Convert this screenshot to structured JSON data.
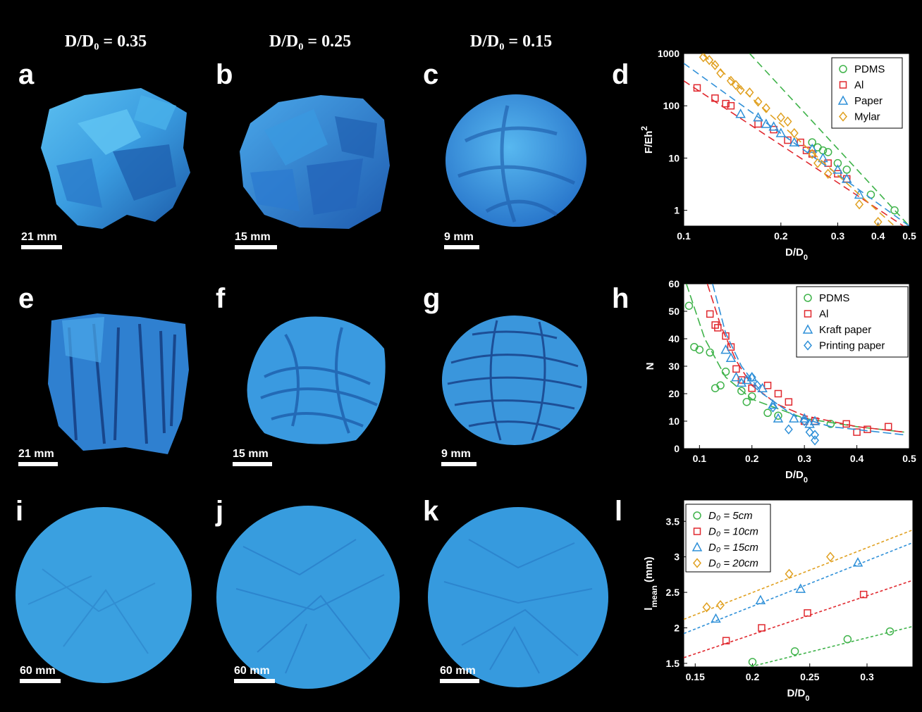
{
  "column_headers": [
    "D/D₀ = 0.35",
    "D/D₀ = 0.25",
    "D/D₀ = 0.15"
  ],
  "panels": {
    "a": {
      "letter": "a",
      "scale": "21 mm"
    },
    "b": {
      "letter": "b",
      "scale": "15 mm"
    },
    "c": {
      "letter": "c",
      "scale": "9 mm"
    },
    "d": {
      "letter": "d"
    },
    "e": {
      "letter": "e",
      "scale": "21 mm"
    },
    "f": {
      "letter": "f",
      "scale": "15 mm"
    },
    "g": {
      "letter": "g",
      "scale": "9 mm"
    },
    "h": {
      "letter": "h"
    },
    "i": {
      "letter": "i",
      "scale": "60 mm"
    },
    "j": {
      "letter": "j",
      "scale": "60 mm"
    },
    "k": {
      "letter": "k",
      "scale": "60 mm"
    },
    "l": {
      "letter": "l"
    }
  },
  "colors": {
    "green": "#3fb34a",
    "red": "#e0282e",
    "blue": "#2f90d8",
    "orange": "#e0a020",
    "specimen": "#3aa0e0"
  },
  "chart_data": [
    {
      "id": "d",
      "type": "scatter",
      "xlabel": "D/D0",
      "ylabel": "F/Eh2",
      "xscale": "log",
      "yscale": "log",
      "xlim": [
        0.1,
        0.5
      ],
      "ylim": [
        0.5,
        1000
      ],
      "xticks": [
        0.1,
        0.2,
        0.3,
        0.4,
        0.5
      ],
      "xtick_labels": [
        "0.1",
        "0.2",
        "0.3",
        "0.4",
        "0.5"
      ],
      "yticks": [
        1,
        10,
        100,
        1000
      ],
      "ytick_labels": [
        "1",
        "10",
        "100",
        "1000"
      ],
      "legend_position": "top-right",
      "series": [
        {
          "name": "PDMS",
          "marker": "circle",
          "color": "#3fb34a",
          "x": [
            0.25,
            0.26,
            0.27,
            0.28,
            0.3,
            0.32,
            0.38,
            0.45
          ],
          "y": [
            20,
            16,
            14,
            13,
            8,
            6,
            2,
            1
          ],
          "fit": [
            [
              0.16,
              1000
            ],
            [
              0.5,
              0.5
            ]
          ]
        },
        {
          "name": "Al",
          "marker": "square",
          "color": "#e0282e",
          "x": [
            0.11,
            0.125,
            0.135,
            0.14,
            0.17,
            0.19,
            0.21,
            0.23,
            0.24,
            0.25,
            0.28,
            0.3,
            0.32
          ],
          "y": [
            220,
            140,
            110,
            100,
            45,
            35,
            22,
            20,
            14,
            12,
            8,
            5,
            4
          ],
          "fit": [
            [
              0.1,
              300
            ],
            [
              0.48,
              0.5
            ]
          ]
        },
        {
          "name": "Paper",
          "marker": "triangle",
          "color": "#2f90d8",
          "x": [
            0.15,
            0.17,
            0.18,
            0.19,
            0.2,
            0.22,
            0.25,
            0.27,
            0.3,
            0.32,
            0.35
          ],
          "y": [
            70,
            60,
            45,
            40,
            30,
            20,
            15,
            10,
            6,
            4,
            2
          ],
          "fit": [
            [
              0.1,
              650
            ],
            [
              0.5,
              0.5
            ]
          ]
        },
        {
          "name": "Mylar",
          "marker": "diamond",
          "color": "#e0a020",
          "x": [
            0.115,
            0.12,
            0.125,
            0.13,
            0.14,
            0.145,
            0.15,
            0.16,
            0.17,
            0.18,
            0.2,
            0.21,
            0.22,
            0.25,
            0.26,
            0.28,
            0.35,
            0.4
          ],
          "y": [
            850,
            750,
            600,
            420,
            300,
            250,
            200,
            180,
            120,
            90,
            60,
            50,
            30,
            12,
            8,
            5,
            1.3,
            0.6
          ],
          "fit": [
            [
              0.115,
              950
            ],
            [
              0.45,
              0.5
            ]
          ]
        }
      ]
    },
    {
      "id": "h",
      "type": "scatter",
      "xlabel": "D/D0",
      "ylabel": "N",
      "xlim": [
        0.07,
        0.5
      ],
      "ylim": [
        0,
        60
      ],
      "xticks": [
        0.1,
        0.2,
        0.3,
        0.4,
        0.5
      ],
      "xtick_labels": [
        "0.1",
        "0.2",
        "0.3",
        "0.4",
        "0.5"
      ],
      "yticks": [
        0,
        10,
        20,
        30,
        40,
        50,
        60
      ],
      "ytick_labels": [
        "0",
        "10",
        "20",
        "30",
        "40",
        "50",
        "60"
      ],
      "legend_position": "top-right",
      "series": [
        {
          "name": "PDMS",
          "marker": "circle",
          "color": "#3fb34a",
          "x": [
            0.08,
            0.09,
            0.1,
            0.12,
            0.13,
            0.14,
            0.15,
            0.18,
            0.19,
            0.2,
            0.23,
            0.25,
            0.35
          ],
          "y": [
            52,
            37,
            36,
            35,
            22,
            23,
            28,
            21,
            17,
            19,
            13,
            12,
            9
          ],
          "fit": [
            [
              0.075,
              60
            ],
            [
              0.11,
              40
            ],
            [
              0.15,
              26
            ],
            [
              0.2,
              18
            ],
            [
              0.3,
              11
            ],
            [
              0.4,
              8
            ],
            [
              0.49,
              6
            ]
          ]
        },
        {
          "name": "Al",
          "marker": "square",
          "color": "#e0282e",
          "x": [
            0.12,
            0.13,
            0.135,
            0.15,
            0.16,
            0.17,
            0.18,
            0.2,
            0.23,
            0.25,
            0.27,
            0.3,
            0.32,
            0.38,
            0.4,
            0.42,
            0.46
          ],
          "y": [
            49,
            45,
            44,
            41,
            37,
            29,
            25,
            22,
            23,
            20,
            17,
            10,
            10,
            9,
            6,
            7,
            8
          ],
          "fit": [
            [
              0.115,
              60
            ],
            [
              0.14,
              45
            ],
            [
              0.17,
              32
            ],
            [
              0.2,
              23
            ],
            [
              0.25,
              16
            ],
            [
              0.3,
              12
            ],
            [
              0.4,
              8
            ],
            [
              0.49,
              6
            ]
          ]
        },
        {
          "name": "Kraft paper",
          "marker": "triangle",
          "color": "#2f90d8",
          "x": [
            0.15,
            0.16,
            0.17,
            0.18,
            0.19,
            0.2,
            0.22,
            0.24,
            0.25,
            0.28,
            0.3,
            0.31,
            0.32
          ],
          "y": [
            36,
            33,
            26,
            24,
            25,
            26,
            22,
            16,
            11,
            11,
            11,
            9,
            10
          ],
          "fit": [
            [
              0.125,
              60
            ],
            [
              0.15,
              42
            ],
            [
              0.18,
              30
            ],
            [
              0.22,
              20
            ],
            [
              0.28,
              12
            ],
            [
              0.35,
              8
            ],
            [
              0.49,
              5
            ]
          ]
        },
        {
          "name": "Printing paper",
          "marker": "diamond",
          "color": "#2f90d8",
          "x": [
            0.2,
            0.21,
            0.24,
            0.27,
            0.3,
            0.31,
            0.32,
            0.32
          ],
          "y": [
            26,
            23,
            15,
            7,
            10,
            6,
            5,
            3
          ],
          "fit": []
        }
      ]
    },
    {
      "id": "l",
      "type": "scatter",
      "xlabel": "D/D0",
      "ylabel": "l_mean (mm)",
      "xlim": [
        0.14,
        0.34
      ],
      "ylim": [
        1.45,
        3.8
      ],
      "xticks": [
        0.15,
        0.2,
        0.25,
        0.3
      ],
      "xtick_labels": [
        "0.15",
        "0.2",
        "0.25",
        "0.3"
      ],
      "yticks": [
        1.5,
        2,
        2.5,
        3,
        3.5
      ],
      "ytick_labels": [
        "1.5",
        "2",
        "2.5",
        "3",
        "3.5"
      ],
      "legend_position": "top-left",
      "series": [
        {
          "name": "D₀ = 5cm",
          "marker": "circle",
          "color": "#3fb34a",
          "x": [
            0.2,
            0.237,
            0.283,
            0.32
          ],
          "y": [
            1.52,
            1.67,
            1.84,
            1.95
          ],
          "fit": [
            [
              0.14,
              1.22
            ],
            [
              0.34,
              2.02
            ]
          ]
        },
        {
          "name": "D₀ = 10cm",
          "marker": "square",
          "color": "#e0282e",
          "x": [
            0.177,
            0.208,
            0.248,
            0.297
          ],
          "y": [
            1.82,
            2.0,
            2.21,
            2.47
          ],
          "fit": [
            [
              0.14,
              1.58
            ],
            [
              0.34,
              2.67
            ]
          ]
        },
        {
          "name": "D₀ = 15cm",
          "marker": "triangle",
          "color": "#2f90d8",
          "x": [
            0.168,
            0.207,
            0.242,
            0.292
          ],
          "y": [
            2.13,
            2.39,
            2.55,
            2.92
          ],
          "fit": [
            [
              0.14,
              1.92
            ],
            [
              0.34,
              3.2
            ]
          ]
        },
        {
          "name": "D₀ = 20cm",
          "marker": "diamond",
          "color": "#e0a020",
          "x": [
            0.16,
            0.172,
            0.232,
            0.268
          ],
          "y": [
            2.29,
            2.32,
            2.76,
            3.0
          ],
          "fit": [
            [
              0.14,
              2.12
            ],
            [
              0.34,
              3.38
            ]
          ]
        }
      ]
    }
  ]
}
